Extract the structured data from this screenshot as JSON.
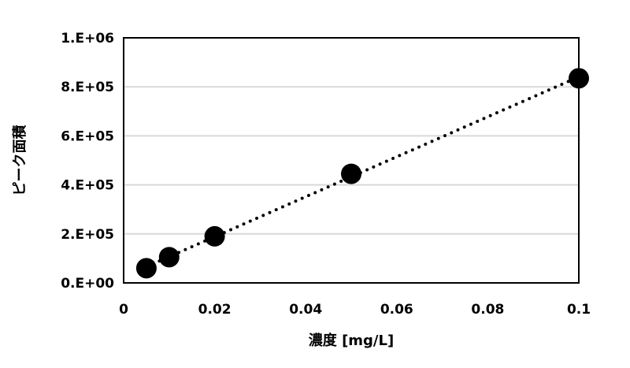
{
  "chart_data": {
    "type": "scatter",
    "title": "",
    "xlabel": "濃度 [mg/L]",
    "ylabel": "ピーク面積",
    "xlim": [
      0,
      0.1
    ],
    "ylim": [
      0,
      1000000
    ],
    "x_ticks": [
      0,
      0.02,
      0.04,
      0.06,
      0.08,
      0.1
    ],
    "x_tick_labels": [
      "0",
      "0.02",
      "0.04",
      "0.06",
      "0.08",
      "0.1"
    ],
    "y_ticks": [
      0,
      200000,
      400000,
      600000,
      800000,
      1000000
    ],
    "y_tick_labels": [
      "0.E+00",
      "2.E+05",
      "4.E+05",
      "6.E+05",
      "8.E+05",
      "1.E+06"
    ],
    "grid": "horizontal",
    "legend": "none",
    "trendline": {
      "type": "linear",
      "style": "dotted",
      "from_x": 0.005,
      "to_x": 0.1
    },
    "series": [
      {
        "x": [
          0.005,
          0.01,
          0.02,
          0.05,
          0.1
        ],
        "y": [
          60000,
          105000,
          190000,
          445000,
          835000
        ],
        "color": "#000000",
        "marker": "circle"
      }
    ]
  }
}
